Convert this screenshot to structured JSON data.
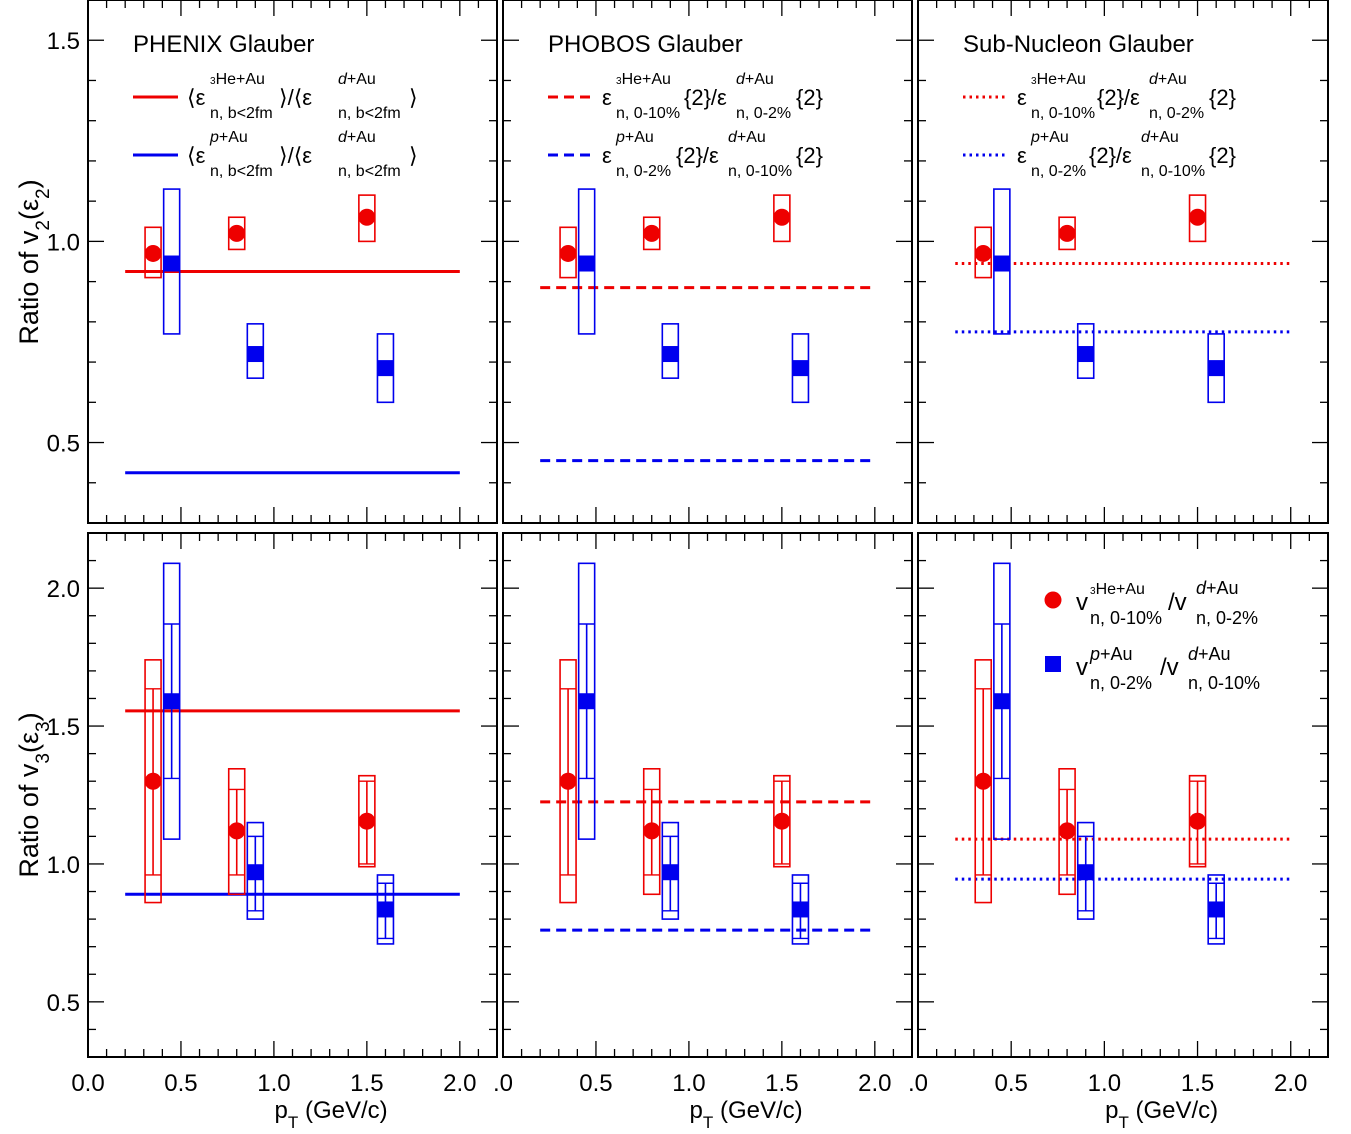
{
  "colors": {
    "red": "#ee0000",
    "blue": "#0000ee"
  },
  "axes": {
    "xlabel": "p_T (GeV/c)",
    "xlim": [
      0.0,
      2.2
    ],
    "xticks": [
      0.0,
      0.5,
      1.0,
      1.5,
      2.0
    ],
    "xtick_labels_first_col": [
      "0.0",
      "0.5",
      "1.0",
      "1.5",
      "2.0"
    ],
    "xtick_labels_other_cols": [
      ".0",
      "0.5",
      "1.0",
      "1.5",
      "2.0"
    ],
    "row1": {
      "ylabel": "Ratio of v2(ε2)",
      "ylim": [
        0.3,
        1.6
      ],
      "yticks": [
        0.5,
        1.0,
        1.5
      ],
      "ytick_labels": [
        "0.5",
        "1.0",
        "1.5"
      ]
    },
    "row2": {
      "ylabel": "Ratio of v3(ε3)",
      "ylim": [
        0.3,
        2.2
      ],
      "yticks": [
        0.5,
        1.0,
        1.5,
        2.0
      ],
      "ytick_labels": [
        "0.5",
        "1.0",
        "1.5",
        "2.0"
      ]
    }
  },
  "panel_titles": [
    "PHENIX Glauber",
    "PHOBOS Glauber",
    "Sub-Nucleon Glauber"
  ],
  "model_legends": {
    "phenix": {
      "style": "solid",
      "red": "⟨ε n, b<2fm ^3He+Au⟩/⟨ε n, b<2fm ^d+Au⟩",
      "blue": "⟨ε n, b<2fm ^p+Au⟩/⟨ε n, b<2fm ^d+Au⟩"
    },
    "phobos": {
      "style": "dashed",
      "red": "ε n, 0-10% ^3He+Au {2}/ε n, 0-2% ^d+Au {2}",
      "blue": "ε n, 0-2% ^p+Au {2}/ε n, 0-10% ^d+Au {2}"
    },
    "subnucleon": {
      "style": "dotted",
      "red": "ε n, 0-10% ^3He+Au {2}/ε n, 0-2% ^d+Au {2}",
      "blue": "ε n, 0-2% ^p+Au {2}/ε n, 0-10% ^d+Au {2}"
    }
  },
  "data_legend": {
    "red": "v n, 0-10% ^3He+Au /v n, 0-2% ^d+Au",
    "blue": "v n, 0-2% ^p+Au /v n, 0-10% ^d+Au"
  },
  "chart_data": [
    {
      "type": "scatter",
      "panel": "row1-col1",
      "title": "PHENIX Glauber",
      "xlabel": "",
      "ylabel": "Ratio of v2(ε2)",
      "xlim": [
        0.0,
        2.2
      ],
      "ylim": [
        0.3,
        1.6
      ],
      "series": [
        {
          "name": "3He+Au / d+Au",
          "color": "red",
          "marker": "circle",
          "x": [
            0.35,
            0.8,
            1.5
          ],
          "y": [
            0.97,
            1.02,
            1.06
          ],
          "syst": [
            [
              0.91,
              1.035
            ],
            [
              0.98,
              1.06
            ],
            [
              1.0,
              1.115
            ]
          ]
        },
        {
          "name": "p+Au / d+Au",
          "color": "blue",
          "marker": "square",
          "x": [
            0.45,
            0.9,
            1.6
          ],
          "y": [
            0.945,
            0.72,
            0.685
          ],
          "syst": [
            [
              0.77,
              1.13
            ],
            [
              0.66,
              0.795
            ],
            [
              0.6,
              0.77
            ]
          ]
        }
      ],
      "model_lines": [
        {
          "color": "red",
          "style": "solid",
          "y": 0.925
        },
        {
          "color": "blue",
          "style": "solid",
          "y": 0.425
        }
      ]
    },
    {
      "type": "scatter",
      "panel": "row1-col2",
      "title": "PHOBOS Glauber",
      "xlim": [
        0.0,
        2.2
      ],
      "ylim": [
        0.3,
        1.6
      ],
      "series": [
        {
          "name": "3He+Au / d+Au",
          "color": "red",
          "marker": "circle",
          "x": [
            0.35,
            0.8,
            1.5
          ],
          "y": [
            0.97,
            1.02,
            1.06
          ],
          "syst": [
            [
              0.91,
              1.035
            ],
            [
              0.98,
              1.06
            ],
            [
              1.0,
              1.115
            ]
          ]
        },
        {
          "name": "p+Au / d+Au",
          "color": "blue",
          "marker": "square",
          "x": [
            0.45,
            0.9,
            1.6
          ],
          "y": [
            0.945,
            0.72,
            0.685
          ],
          "syst": [
            [
              0.77,
              1.13
            ],
            [
              0.66,
              0.795
            ],
            [
              0.6,
              0.77
            ]
          ]
        }
      ],
      "model_lines": [
        {
          "color": "red",
          "style": "dashed",
          "y": 0.885
        },
        {
          "color": "blue",
          "style": "dashed",
          "y": 0.455
        }
      ]
    },
    {
      "type": "scatter",
      "panel": "row1-col3",
      "title": "Sub-Nucleon Glauber",
      "xlim": [
        0.0,
        2.2
      ],
      "ylim": [
        0.3,
        1.6
      ],
      "series": [
        {
          "name": "3He+Au / d+Au",
          "color": "red",
          "marker": "circle",
          "x": [
            0.35,
            0.8,
            1.5
          ],
          "y": [
            0.97,
            1.02,
            1.06
          ],
          "syst": [
            [
              0.91,
              1.035
            ],
            [
              0.98,
              1.06
            ],
            [
              1.0,
              1.115
            ]
          ]
        },
        {
          "name": "p+Au / d+Au",
          "color": "blue",
          "marker": "square",
          "x": [
            0.45,
            0.9,
            1.6
          ],
          "y": [
            0.945,
            0.72,
            0.685
          ],
          "syst": [
            [
              0.77,
              1.13
            ],
            [
              0.66,
              0.795
            ],
            [
              0.6,
              0.77
            ]
          ]
        }
      ],
      "model_lines": [
        {
          "color": "red",
          "style": "dotted",
          "y": 0.945
        },
        {
          "color": "blue",
          "style": "dotted",
          "y": 0.775
        }
      ]
    },
    {
      "type": "scatter",
      "panel": "row2-col1",
      "xlabel": "p_T (GeV/c)",
      "ylabel": "Ratio of v3(ε3)",
      "xlim": [
        0.0,
        2.2
      ],
      "ylim": [
        0.3,
        2.2
      ],
      "series": [
        {
          "name": "3He+Au / d+Au",
          "color": "red",
          "marker": "circle",
          "x": [
            0.35,
            0.8,
            1.5
          ],
          "y": [
            1.3,
            1.12,
            1.155
          ],
          "syst": [
            [
              0.86,
              1.74
            ],
            [
              0.89,
              1.345
            ],
            [
              0.99,
              1.32
            ]
          ],
          "stat": [
            [
              0.96,
              1.635
            ],
            [
              0.96,
              1.27
            ],
            [
              1.0,
              1.3
            ]
          ]
        },
        {
          "name": "p+Au / d+Au",
          "color": "blue",
          "marker": "square",
          "x": [
            0.45,
            0.9,
            1.6
          ],
          "y": [
            1.59,
            0.97,
            0.835
          ],
          "syst": [
            [
              1.09,
              2.09
            ],
            [
              0.8,
              1.15
            ],
            [
              0.71,
              0.96
            ]
          ],
          "stat": [
            [
              1.31,
              1.87
            ],
            [
              0.83,
              1.1
            ],
            [
              0.73,
              0.93
            ]
          ]
        }
      ],
      "model_lines": [
        {
          "color": "red",
          "style": "solid",
          "y": 1.555
        },
        {
          "color": "blue",
          "style": "solid",
          "y": 0.89
        }
      ]
    },
    {
      "type": "scatter",
      "panel": "row2-col2",
      "xlabel": "p_T (GeV/c)",
      "xlim": [
        0.0,
        2.2
      ],
      "ylim": [
        0.3,
        2.2
      ],
      "series": [
        {
          "name": "3He+Au / d+Au",
          "color": "red",
          "marker": "circle",
          "x": [
            0.35,
            0.8,
            1.5
          ],
          "y": [
            1.3,
            1.12,
            1.155
          ],
          "syst": [
            [
              0.86,
              1.74
            ],
            [
              0.89,
              1.345
            ],
            [
              0.99,
              1.32
            ]
          ],
          "stat": [
            [
              0.96,
              1.635
            ],
            [
              0.96,
              1.27
            ],
            [
              1.0,
              1.3
            ]
          ]
        },
        {
          "name": "p+Au / d+Au",
          "color": "blue",
          "marker": "square",
          "x": [
            0.45,
            0.9,
            1.6
          ],
          "y": [
            1.59,
            0.97,
            0.835
          ],
          "syst": [
            [
              1.09,
              2.09
            ],
            [
              0.8,
              1.15
            ],
            [
              0.71,
              0.96
            ]
          ],
          "stat": [
            [
              1.31,
              1.87
            ],
            [
              0.83,
              1.1
            ],
            [
              0.73,
              0.93
            ]
          ]
        }
      ],
      "model_lines": [
        {
          "color": "red",
          "style": "dashed",
          "y": 1.225
        },
        {
          "color": "blue",
          "style": "dashed",
          "y": 0.76
        }
      ]
    },
    {
      "type": "scatter",
      "panel": "row2-col3",
      "xlabel": "p_T (GeV/c)",
      "xlim": [
        0.0,
        2.2
      ],
      "ylim": [
        0.3,
        2.2
      ],
      "series": [
        {
          "name": "3He+Au / d+Au",
          "color": "red",
          "marker": "circle",
          "x": [
            0.35,
            0.8,
            1.5
          ],
          "y": [
            1.3,
            1.12,
            1.155
          ],
          "syst": [
            [
              0.86,
              1.74
            ],
            [
              0.89,
              1.345
            ],
            [
              0.99,
              1.32
            ]
          ],
          "stat": [
            [
              0.96,
              1.635
            ],
            [
              0.96,
              1.27
            ],
            [
              1.0,
              1.3
            ]
          ]
        },
        {
          "name": "p+Au / d+Au",
          "color": "blue",
          "marker": "square",
          "x": [
            0.45,
            0.9,
            1.6
          ],
          "y": [
            1.59,
            0.97,
            0.835
          ],
          "syst": [
            [
              1.09,
              2.09
            ],
            [
              0.8,
              1.15
            ],
            [
              0.71,
              0.96
            ]
          ],
          "stat": [
            [
              1.31,
              1.87
            ],
            [
              0.83,
              1.1
            ],
            [
              0.73,
              0.93
            ]
          ]
        }
      ],
      "model_lines": [
        {
          "color": "red",
          "style": "dotted",
          "y": 1.09
        },
        {
          "color": "blue",
          "style": "dotted",
          "y": 0.945
        }
      ]
    }
  ]
}
